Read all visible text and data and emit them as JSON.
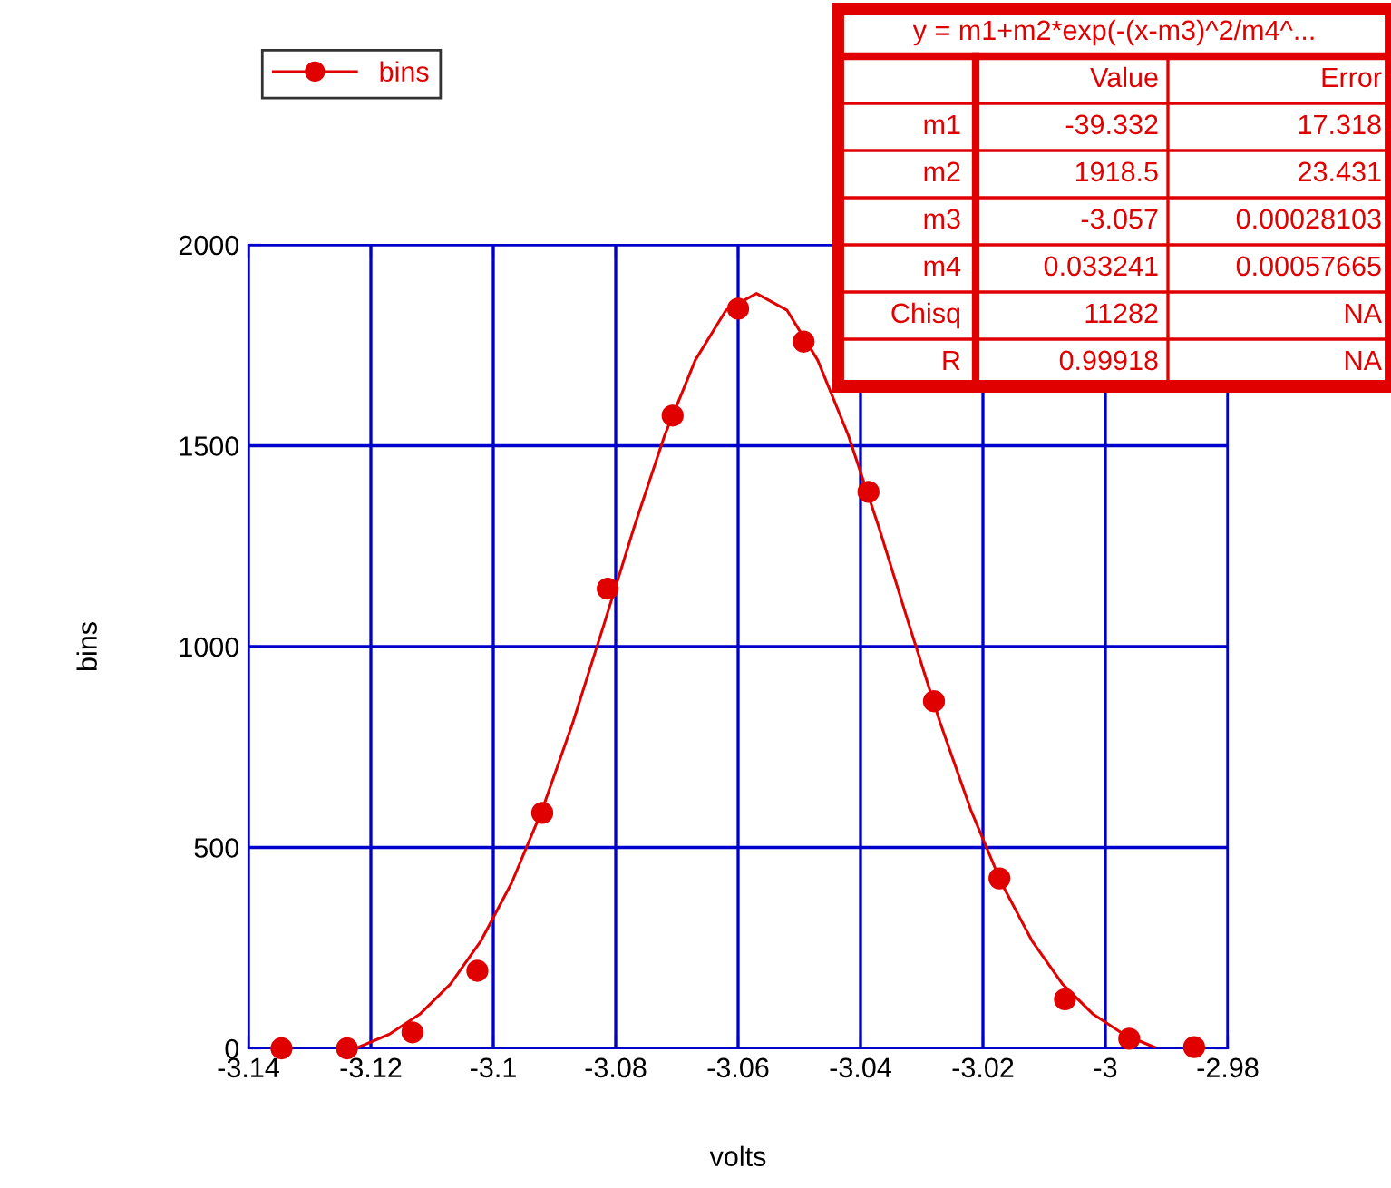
{
  "chart_data": {
    "type": "scatter",
    "xlabel": "volts",
    "ylabel": "bins",
    "xlim": [
      -3.14,
      -2.98
    ],
    "xticks": [
      -3.14,
      -3.12,
      -3.1,
      -3.08,
      -3.06,
      -3.04,
      -3.02,
      -3,
      -2.98
    ],
    "ylim": [
      0,
      2000
    ],
    "yticks": [
      0,
      500,
      1000,
      1500,
      2000
    ],
    "grid": true,
    "legend": "top left",
    "marker": "circle",
    "series": [
      {
        "name": "bins",
        "color": "#e00000",
        "x": [
          -3.1346,
          -3.1239,
          -3.1132,
          -3.1026,
          -3.092,
          -3.0813,
          -3.0707,
          -3.06,
          -3.0493,
          -3.0387,
          -3.028,
          -3.0173,
          -3.0066,
          -2.9961,
          -2.9855
        ],
        "values": [
          0,
          0,
          40,
          193,
          586,
          1144,
          1575,
          1841,
          1759,
          1385,
          864,
          423,
          122,
          24,
          3
        ]
      },
      {
        "color": "#e00000",
        "type": "line",
        "marker": "none",
        "x": [
          -3.122,
          -3.117,
          -3.112,
          -3.107,
          -3.102,
          -3.097,
          -3.092,
          -3.087,
          -3.082,
          -3.077,
          -3.072,
          -3.067,
          -3.062,
          -3.057,
          -3.052,
          -3.047,
          -3.042,
          -3.037,
          -3.032,
          -3.027,
          -3.022,
          -3.017,
          -3.012,
          -3.007,
          -3.002,
          -2.997,
          -2.992
        ],
        "values": [
          3,
          35,
          85,
          160,
          268,
          412,
          594,
          811,
          1051,
          1297,
          1526,
          1713,
          1837,
          1879,
          1837,
          1713,
          1526,
          1297,
          1051,
          811,
          594,
          412,
          268,
          160,
          85,
          35,
          3
        ]
      }
    ],
    "annotations": [
      "y = m1+m2*exp(-(x-m3)^2/m4^...",
      "Value",
      "Error",
      "m1",
      "-39.332",
      "17.318",
      "m2",
      "1918.5",
      "23.431",
      "m3",
      "-3.057",
      "0.00028103",
      "m4",
      "0.033241",
      "0.00057665",
      "Chisq",
      "11282",
      "NA",
      "R",
      "0.99918",
      "NA"
    ]
  }
}
